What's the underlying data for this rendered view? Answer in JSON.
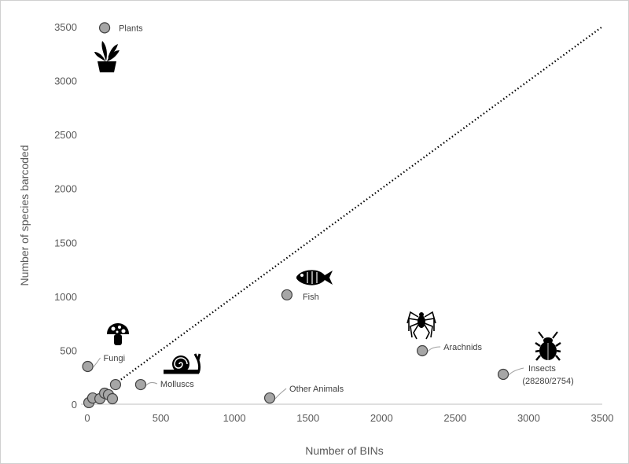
{
  "chart_data": {
    "type": "scatter",
    "title": "",
    "xlabel": "Number of BINs",
    "ylabel": "Number of species barcoded",
    "xlim": [
      0,
      3500
    ],
    "ylim": [
      0,
      3500
    ],
    "xticks": [
      "0",
      "500",
      "1000",
      "1500",
      "2000",
      "2500",
      "3000",
      "3500"
    ],
    "yticks": [
      "0",
      "500",
      "1000",
      "1500",
      "2000",
      "2500",
      "3000",
      "3500"
    ],
    "grid": false,
    "reference_line": {
      "type": "y=x",
      "style": "dotted",
      "x_range": [
        190,
        3500
      ]
    },
    "points": [
      {
        "label": "Plants",
        "x": 118,
        "y": 3490,
        "icon": "plant-icon"
      },
      {
        "label": "Fish",
        "x": 1357,
        "y": 1014,
        "icon": "fish-icon"
      },
      {
        "label": "Arachnids",
        "x": 2277,
        "y": 496,
        "icon": "spider-icon"
      },
      {
        "label": "Insects",
        "sublabel": "(28280/2754)",
        "x": 2827,
        "y": 277,
        "icon": "beetle-icon"
      },
      {
        "label": "Other Animals",
        "x": 1240,
        "y": 58
      },
      {
        "label": "Molluscs",
        "x": 363,
        "y": 182,
        "icon": "snail-icon"
      },
      {
        "label": "Fungi",
        "x": 3,
        "y": 350,
        "icon": "mushroom-icon"
      },
      {
        "label": "",
        "x": 11,
        "y": 15
      },
      {
        "label": "",
        "x": 37,
        "y": 58
      },
      {
        "label": "",
        "x": 86,
        "y": 51
      },
      {
        "label": "",
        "x": 118,
        "y": 102
      },
      {
        "label": "",
        "x": 144,
        "y": 88
      },
      {
        "label": "",
        "x": 171,
        "y": 51
      },
      {
        "label": "",
        "x": 192,
        "y": 182
      }
    ]
  },
  "colors": {
    "point_fill": "#a6a6a6",
    "point_stroke": "#404040",
    "axis": "#bfbfbf",
    "text": "#595959"
  }
}
